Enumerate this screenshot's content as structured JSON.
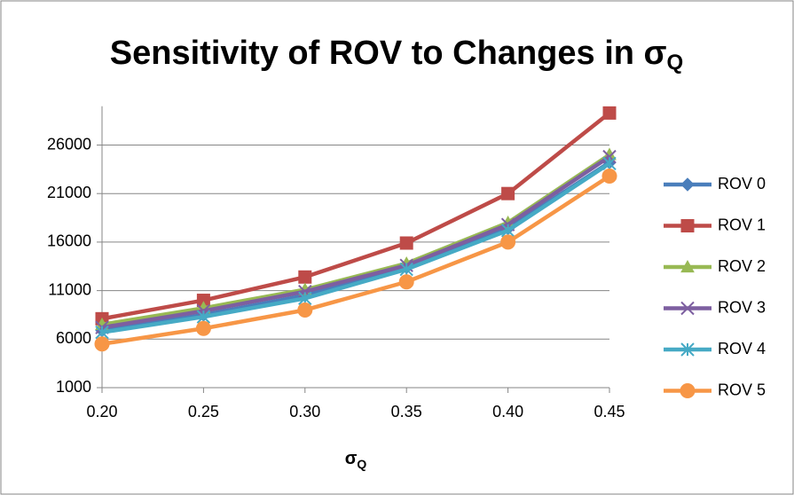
{
  "chart_data": {
    "type": "line",
    "title": "Sensitivity of ROV to Changes in σ",
    "title_subscript": "Q",
    "x_label": "σ",
    "x_label_subscript": "Q",
    "categories": [
      "0.20",
      "0.25",
      "0.30",
      "0.35",
      "0.40",
      "0.45"
    ],
    "ylim": [
      1000,
      30000
    ],
    "yticks": [
      1000,
      6000,
      11000,
      16000,
      21000,
      26000
    ],
    "grid": true,
    "legend": "right",
    "series": [
      {
        "name": "ROV 0",
        "color": "#4a7ebb",
        "marker": "diamond",
        "values": [
          6900,
          8500,
          10500,
          13400,
          17400,
          24200
        ]
      },
      {
        "name": "ROV 1",
        "color": "#be4b48",
        "marker": "square",
        "values": [
          8100,
          10000,
          12400,
          15900,
          21000,
          29300
        ]
      },
      {
        "name": "ROV 2",
        "color": "#98b954",
        "marker": "triangle",
        "values": [
          7500,
          9200,
          11100,
          13800,
          18000,
          25000
        ]
      },
      {
        "name": "ROV 3",
        "color": "#7d5fa0",
        "marker": "x",
        "values": [
          7200,
          8900,
          10900,
          13600,
          17800,
          24800
        ]
      },
      {
        "name": "ROV 4",
        "color": "#46aac5",
        "marker": "star",
        "values": [
          6700,
          8300,
          10200,
          13200,
          17200,
          24100
        ]
      },
      {
        "name": "ROV 5",
        "color": "#f79646",
        "marker": "circle",
        "values": [
          5500,
          7100,
          9000,
          11900,
          16000,
          22800
        ]
      }
    ]
  }
}
